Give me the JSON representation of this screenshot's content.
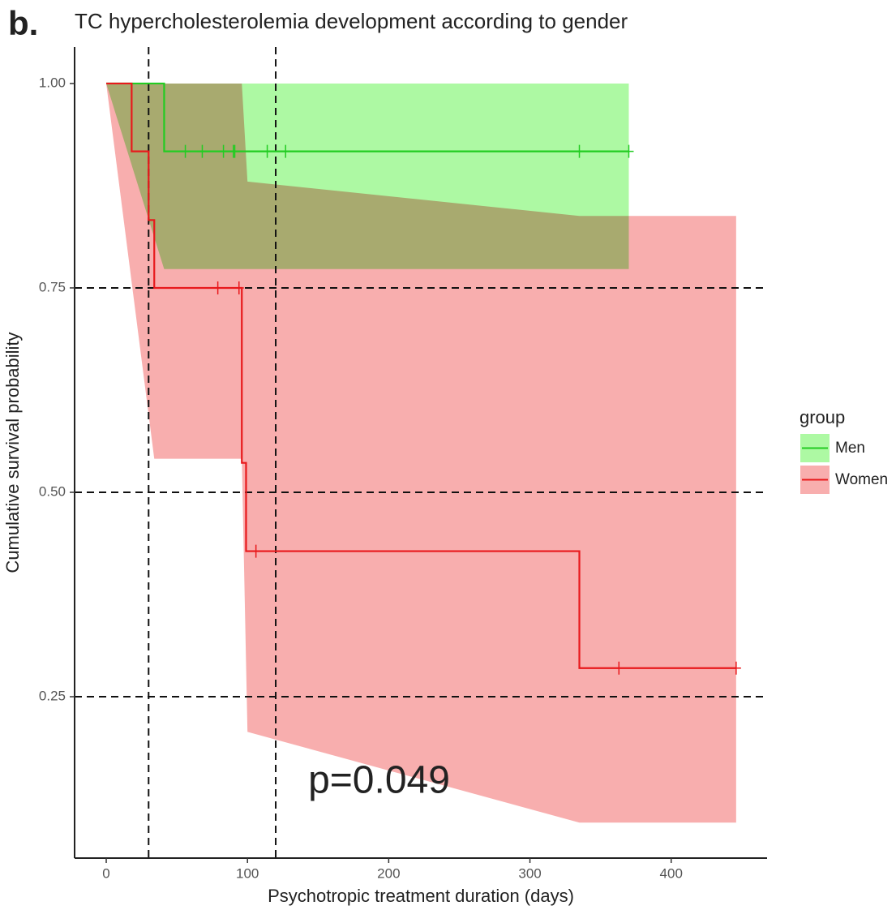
{
  "chart_data": {
    "type": "survival",
    "panel_label": "b.",
    "title": "TC hypercholesterolemia development according to gender",
    "x_label": "Psychotropic treatment duration (days)",
    "y_label": "Cumulative survival probability",
    "legend_title": "group",
    "annotation": {
      "text": "p=0.049",
      "x": 143,
      "y": 0.145
    },
    "xlim": [
      -22.4,
      467.9
    ],
    "ylim": [
      0.0526,
      1.0446
    ],
    "xticks": [
      0,
      100,
      200,
      300,
      400
    ],
    "yticks": [
      0.25,
      {
        "value": 0.5,
        "label": "0.50"
      },
      0.75,
      {
        "value": 1,
        "label": "1.00"
      }
    ],
    "hlines": [
      0.25,
      0.5,
      0.75
    ],
    "vlines": [
      30,
      120
    ],
    "series": [
      {
        "name": "Men",
        "color": "#22cc22",
        "band_color": "#adf9a3",
        "x": [
          0,
          41
        ],
        "values": [
          1,
          0.917
        ],
        "censored_x": [
          56,
          68,
          83,
          90,
          91,
          114,
          127,
          335,
          370
        ],
        "censored_y": [
          0.917,
          0.917,
          0.917,
          0.917,
          0.917,
          0.917,
          0.917,
          0.917,
          0.917
        ],
        "band": {
          "x": [
            0,
            41,
            370
          ],
          "lower": [
            1,
            0.773,
            0.773
          ],
          "upper": [
            1,
            1,
            1
          ]
        }
      },
      {
        "name": "Women",
        "color": "#e8191c",
        "band_color": "#f8aeae",
        "x": [
          0,
          18,
          30,
          34,
          96,
          99,
          335
        ],
        "values": [
          1,
          0.917,
          0.833,
          0.75,
          0.536,
          0.428,
          0.285
        ],
        "censored_x": [
          79,
          94,
          106,
          363,
          446
        ],
        "censored_y": [
          0.75,
          0.75,
          0.428,
          0.285,
          0.285
        ],
        "band": {
          "x": [
            0,
            34,
            96,
            100,
            335,
            446
          ],
          "lower": [
            1,
            0.541,
            0.541,
            0.207,
            0.096,
            0.096
          ],
          "upper": [
            1,
            1,
            1,
            0.88,
            0.838,
            0.838
          ]
        }
      }
    ]
  }
}
